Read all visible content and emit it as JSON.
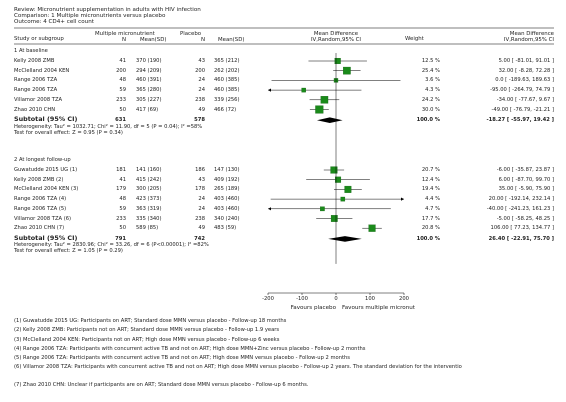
{
  "header": {
    "review": "Review:  Micronutrient supplementation in adults with HIV infection",
    "comparison": "Comparison:  1 Multiple micronutrients versus placebo",
    "outcome": "Outcome:  4 CD4+ cell count"
  },
  "columns": {
    "study": "Study or subgroup",
    "exp_name": "Multiple micronutrient",
    "exp_n": "N",
    "exp_mean": "Mean(SD)",
    "ctl_name": "Placebo",
    "ctl_n": "N",
    "ctl_mean": "Mean(SD)",
    "md_line1": "Mean Difference",
    "md_line2": "IV,Random,95% CI",
    "weight": "Weight",
    "md2_line1": "Mean Difference",
    "md2_line2": "IV,Random,95% CI"
  },
  "chart_data": {
    "type": "forest",
    "axis": {
      "ticks": [
        "-200",
        "-100",
        "0",
        "100",
        "200"
      ],
      "tick_values": [
        -200,
        -100,
        0,
        100,
        200
      ],
      "xlim": [
        -200,
        200
      ]
    },
    "favours_left": "Favours placebo",
    "favours_right": "Favours multiple micronut",
    "subgroups": [
      {
        "title": "1 At baseline",
        "studies": [
          {
            "name": "Kelly 2008 ZMB",
            "en": "41",
            "em": "370 (190)",
            "cn": "43",
            "cm": "365 (212)",
            "weight": "12.5 %",
            "ci_text": "5.00 [ -81.01, 91.01 ]",
            "md": 5.0,
            "lo": -81.01,
            "hi": 91.01,
            "w": 12.5
          },
          {
            "name": "McClelland 2004 KEN",
            "en": "200",
            "em": "294 (209)",
            "cn": "200",
            "cm": "262 (202)",
            "weight": "25.4 %",
            "ci_text": "32.00 [ -8.28, 72.28 ]",
            "md": 32.0,
            "lo": -8.28,
            "hi": 72.28,
            "w": 25.4
          },
          {
            "name": "Range 2006 TZA",
            "en": "48",
            "em": "460 (391)",
            "cn": "24",
            "cm": "460 (385)",
            "weight": "3.6 %",
            "ci_text": "0.0 [ -189.63, 189.63 ]",
            "md": 0.0,
            "lo": -189.63,
            "hi": 189.63,
            "w": 3.6
          },
          {
            "name": "Range 2006 TZA",
            "en": "59",
            "em": "365 (280)",
            "cn": "24",
            "cm": "460 (385)",
            "weight": "4.3 %",
            "ci_text": "-95.00 [ -264.79, 74.79 ]",
            "md": -95.0,
            "lo": -264.79,
            "hi": 74.79,
            "w": 4.3
          },
          {
            "name": "Villamor 2008 TZA",
            "en": "233",
            "em": "305 (227)",
            "cn": "238",
            "cm": "339 (256)",
            "weight": "24.2 %",
            "ci_text": "-34.00 [ -77.67, 9.67 ]",
            "md": -34.0,
            "lo": -77.67,
            "hi": 9.67,
            "w": 24.2
          },
          {
            "name": "Zhao 2010 CHN",
            "en": "50",
            "em": "417 (69)",
            "cn": "49",
            "cm": "466 (72)",
            "weight": "30.0 %",
            "ci_text": "-49.00 [ -76.79, -21.21 ]",
            "md": -49.0,
            "lo": -76.79,
            "hi": -21.21,
            "w": 30.0
          }
        ],
        "subtotal": {
          "label": "Subtotal (95% CI)",
          "en": "631",
          "cn": "578",
          "weight": "100.0 %",
          "ci_text": "-18.27 [ -55.97, 19.42 ]",
          "md": -18.27,
          "lo": -55.97,
          "hi": 19.42
        },
        "heterogeneity": "Heterogeneity: Tau² = 1032.71; Chi² = 11.90, df = 5 (P = 0.04); I² =58%",
        "overall_effect": "Test for overall effect: Z = 0.95 (P = 0.34)"
      },
      {
        "title": "2 At longest follow-up",
        "studies": [
          {
            "name": "Guwatudde 2015 UG (1)",
            "en": "181",
            "em": "141 (160)",
            "cn": "186",
            "cm": "147 (130)",
            "weight": "20.7 %",
            "ci_text": "-6.00 [ -35.87, 23.87 ]",
            "md": -6.0,
            "lo": -35.87,
            "hi": 23.87,
            "w": 20.7
          },
          {
            "name": "Kelly 2008 ZMB (2)",
            "en": "41",
            "em": "415 (242)",
            "cn": "43",
            "cm": "409 (192)",
            "weight": "12.4 %",
            "ci_text": "6.00 [ -87.70, 99.70 ]",
            "md": 6.0,
            "lo": -87.7,
            "hi": 99.7,
            "w": 12.4
          },
          {
            "name": "McClelland 2004 KEN (3)",
            "en": "179",
            "em": "300 (205)",
            "cn": "178",
            "cm": "265 (189)",
            "weight": "19.4 %",
            "ci_text": "35.00 [ -5.90, 75.90 ]",
            "md": 35.0,
            "lo": -5.9,
            "hi": 75.9,
            "w": 19.4
          },
          {
            "name": "Range 2006 TZA (4)",
            "en": "48",
            "em": "423 (373)",
            "cn": "24",
            "cm": "403 (460)",
            "weight": "4.4 %",
            "ci_text": "20.00 [ -192.14, 232.14 ]",
            "md": 20.0,
            "lo": -192.14,
            "hi": 232.14,
            "w": 4.4
          },
          {
            "name": "Range 2006 TZA (5)",
            "en": "59",
            "em": "363 (319)",
            "cn": "24",
            "cm": "403 (460)",
            "weight": "4.7 %",
            "ci_text": "-40.00 [ -241.23, 161.23 ]",
            "md": -40.0,
            "lo": -241.23,
            "hi": 161.23,
            "w": 4.7
          },
          {
            "name": "Villamor 2008 TZA (6)",
            "en": "233",
            "em": "335 (340)",
            "cn": "238",
            "cm": "340 (240)",
            "weight": "17.7 %",
            "ci_text": "-5.00 [ -58.25, 48.25 ]",
            "md": -5.0,
            "lo": -58.25,
            "hi": 48.25,
            "w": 17.7
          },
          {
            "name": "Zhao 2010 CHN (7)",
            "en": "50",
            "em": "589 (85)",
            "cn": "49",
            "cm": "483 (59)",
            "weight": "20.8 %",
            "ci_text": "106.00 [ 77.23, 134.77 ]",
            "md": 106.0,
            "lo": 77.23,
            "hi": 134.77,
            "w": 20.8
          }
        ],
        "subtotal": {
          "label": "Subtotal (95% CI)",
          "en": "791",
          "cn": "742",
          "weight": "100.0 %",
          "ci_text": "26.40 [ -22.91, 75.70 ]",
          "md": 26.4,
          "lo": -22.91,
          "hi": 75.7
        },
        "heterogeneity": "Heterogeneity: Tau² = 2830.96; Chi² = 33.26, df = 6 (P<0.00001); I² =82%",
        "overall_effect": "Test for overall effect: Z = 1.05 (P = 0.29)"
      }
    ]
  },
  "footnotes": [
    "(1) Guwatudde 2015 UG: Participants on ART; Standard dose MMN versus placebo - Follow-up 18 months",
    "(2) Kelly 2008 ZMB: Participants not on ART; Standard dose MMN versus placebo - Follow-up 1.9 years",
    "(3) McClelland 2004 KEN: Participants not on ART; High dose MMN versus placebo - Follow-up 6 weeks",
    "(4) Range 2006 TZA: Participants with concurrent active TB and not on ART; High dose MMN+Zinc versus placebo - Follow-up 2 months",
    "(5) Range 2006 TZA: Participants with concurrent active TB and not on ART; High dose MMN versus placebo - Follow-up 2 months",
    "(6) Villamor 2008 TZA: Participants with concurrent active TB and not on ART; High dose MMN versus placebo - Follow-up 2 years. The standard deviation for the interventio",
    "(7) Zhao 2010 CHN: Unclear if participants are on ART; Standard dose MMN versus placebo - Follow-up 6 months."
  ],
  "colors": {
    "marker": "#1a8a1a",
    "marker_stroke": "#0a5a0a",
    "diamond": "#000000",
    "line": "#000000"
  }
}
